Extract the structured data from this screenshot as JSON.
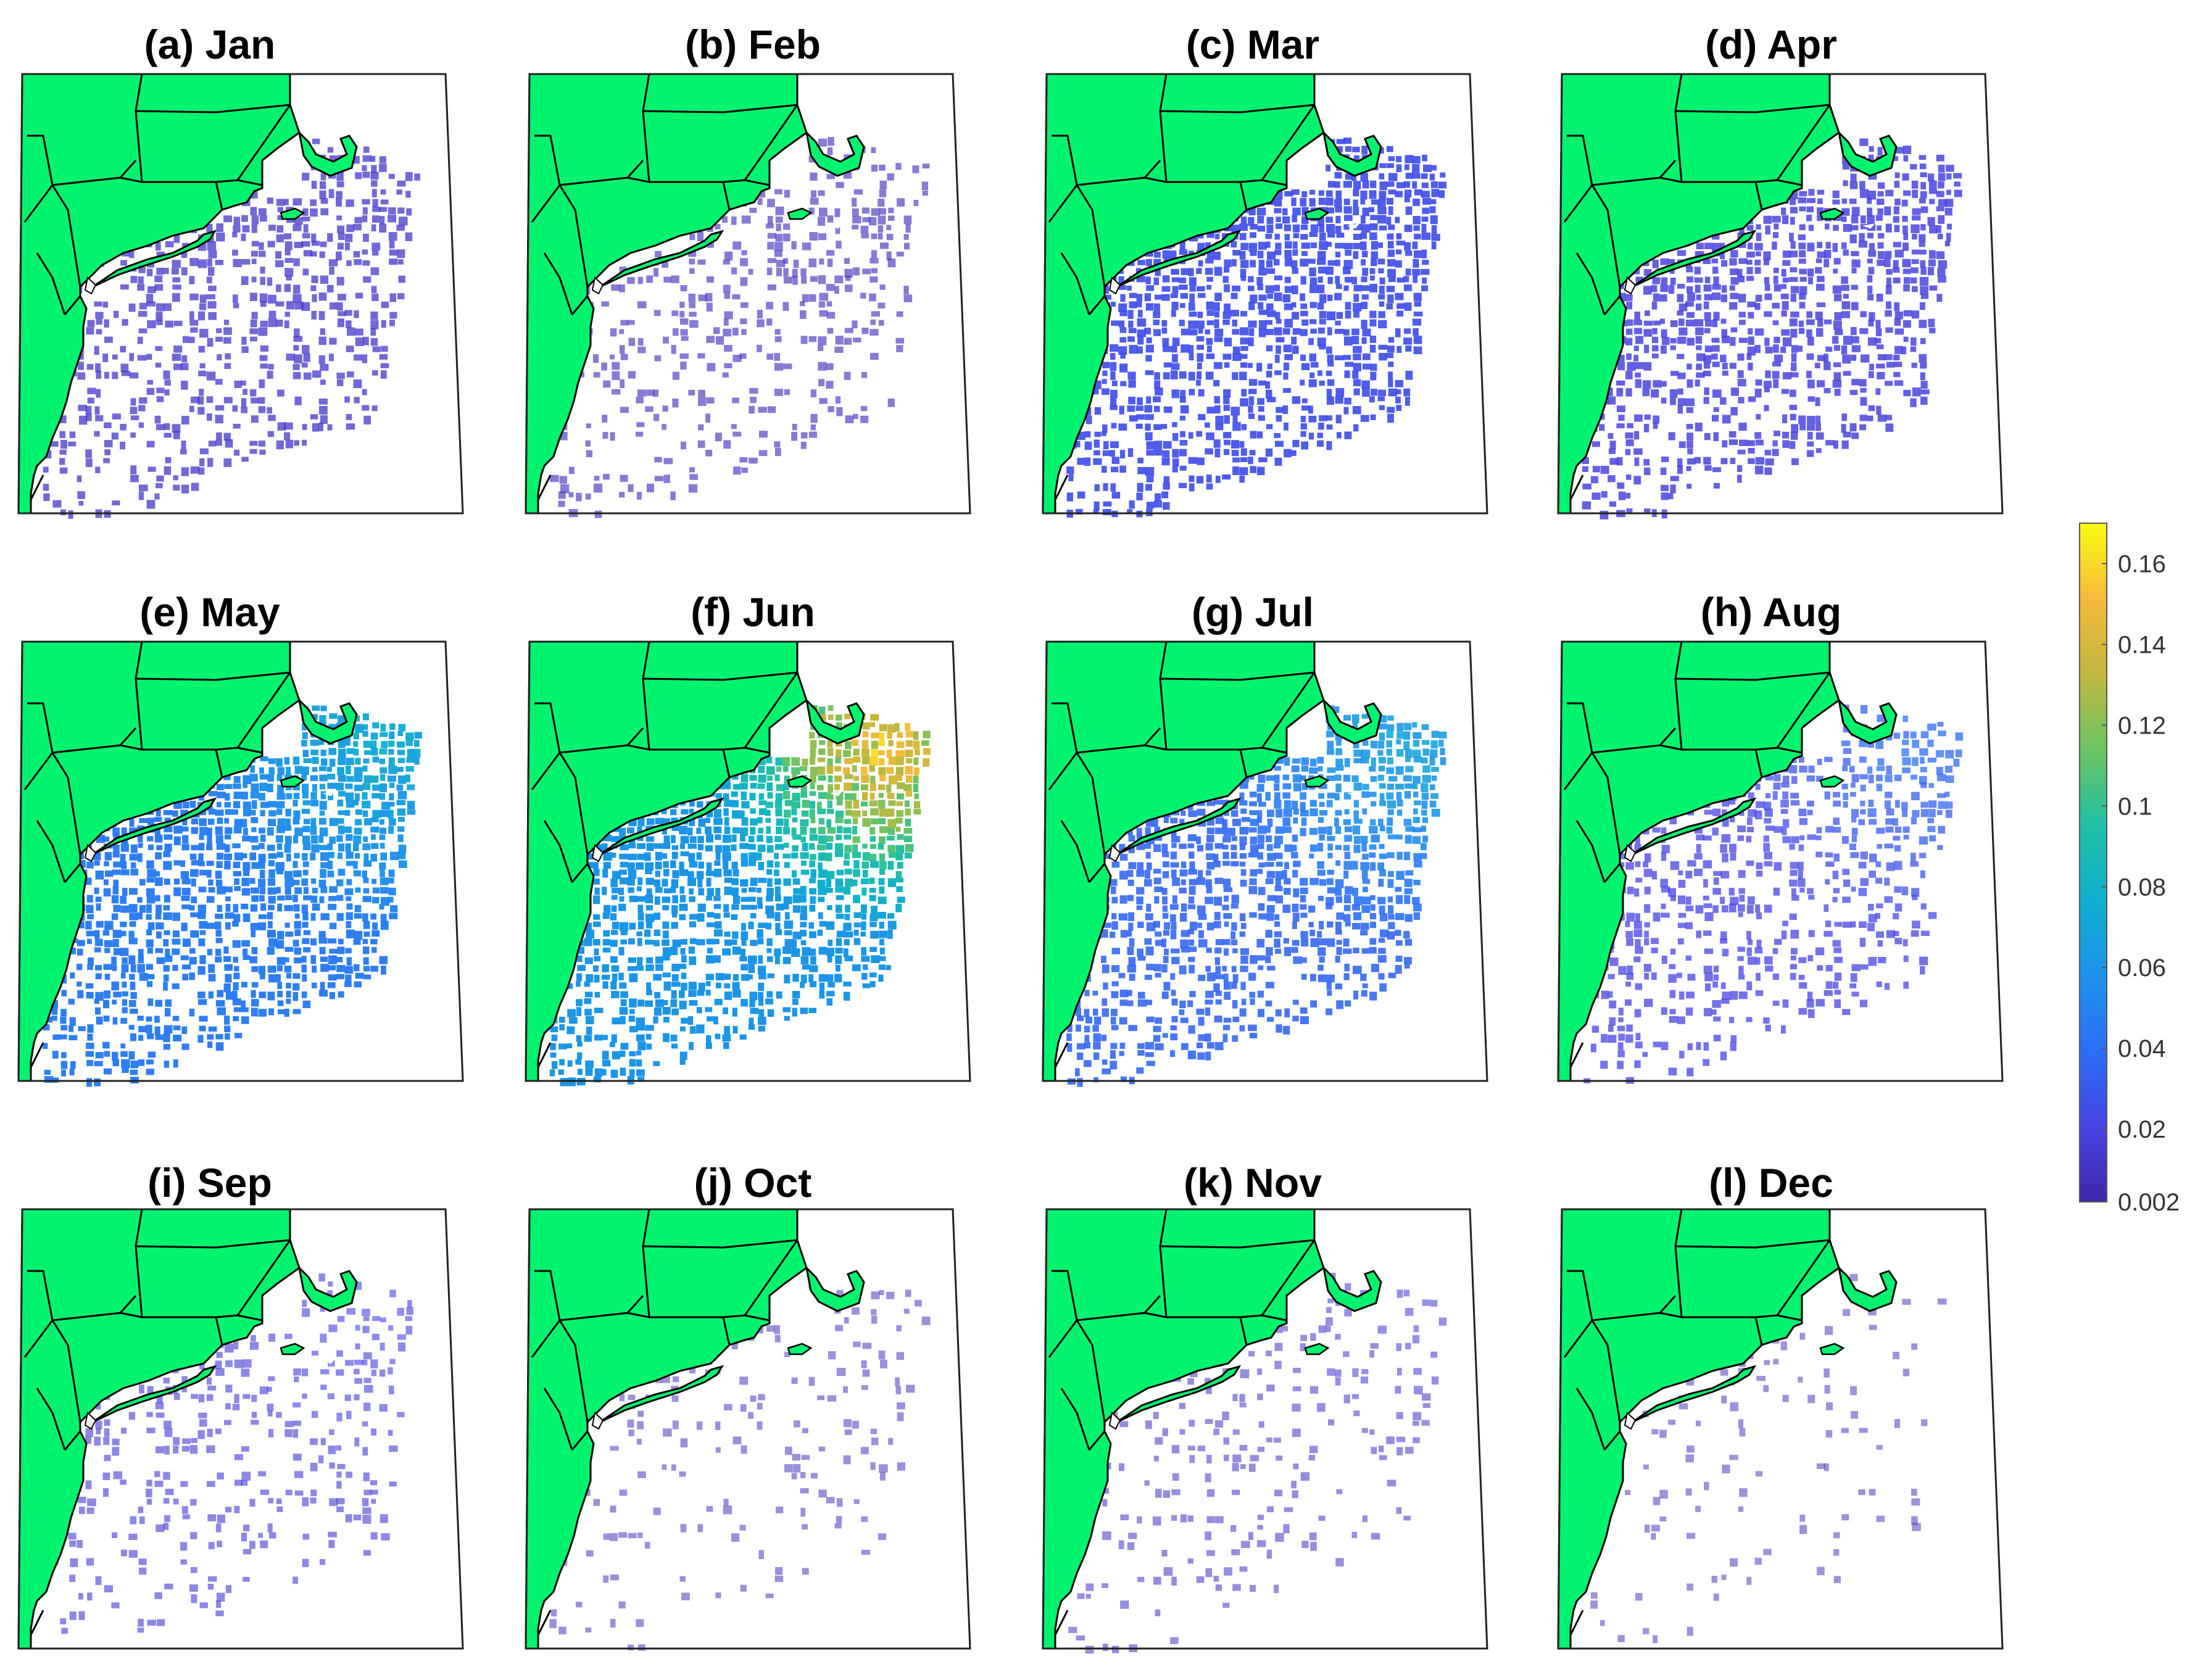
{
  "panels": [
    {
      "title": "(a) Jan",
      "month": "Jan",
      "level": 0.012,
      "peak": 0.012,
      "coverage": 0.55
    },
    {
      "title": "(b) Feb",
      "month": "Feb",
      "level": 0.008,
      "peak": 0.008,
      "coverage": 0.35
    },
    {
      "title": "(c) Mar",
      "month": "Mar",
      "level": 0.025,
      "peak": 0.025,
      "coverage": 0.85
    },
    {
      "title": "(d) Apr",
      "month": "Apr",
      "level": 0.018,
      "peak": 0.018,
      "coverage": 0.7
    },
    {
      "title": "(e) May",
      "month": "May",
      "level": 0.045,
      "peak": 0.075,
      "coverage": 0.95
    },
    {
      "title": "(f) Jun",
      "month": "Jun",
      "level": 0.06,
      "peak": 0.15,
      "coverage": 1.0
    },
    {
      "title": "(g) Jul",
      "month": "Jul",
      "level": 0.035,
      "peak": 0.07,
      "coverage": 0.8
    },
    {
      "title": "(h) Aug",
      "month": "Aug",
      "level": 0.02,
      "peak": 0.04,
      "coverage": 0.55
    },
    {
      "title": "(i) Sep",
      "month": "Sep",
      "level": 0.015,
      "peak": 0.02,
      "coverage": 0.3
    },
    {
      "title": "(j) Oct",
      "month": "Oct",
      "level": 0.008,
      "peak": 0.008,
      "coverage": 0.15
    },
    {
      "title": "(k) Nov",
      "month": "Nov",
      "level": 0.01,
      "peak": 0.015,
      "coverage": 0.2
    },
    {
      "title": "(l) Dec",
      "month": "Dec",
      "level": 0.006,
      "peak": 0.006,
      "coverage": 0.1
    }
  ],
  "colorbar": {
    "min": 0.002,
    "max": 0.17,
    "ticks": [
      {
        "value": 0.16,
        "label": "0.16"
      },
      {
        "value": 0.14,
        "label": "0.14"
      },
      {
        "value": 0.12,
        "label": "0.12"
      },
      {
        "value": 0.1,
        "label": "0.1"
      },
      {
        "value": 0.08,
        "label": "0.08"
      },
      {
        "value": 0.06,
        "label": "0.06"
      },
      {
        "value": 0.04,
        "label": "0.04"
      },
      {
        "value": 0.02,
        "label": "0.02"
      },
      {
        "value": 0.002,
        "label": "0.002"
      }
    ],
    "colormap": [
      "#3e26a8",
      "#4744e4",
      "#2b6ff6",
      "#1d92e9",
      "#10afcf",
      "#22c0a5",
      "#6bc462",
      "#c2b83e",
      "#f7ba3d",
      "#f9fb14"
    ]
  },
  "colors": {
    "land": "#00f36f",
    "outline": "#000000",
    "background": "#ffffff"
  }
}
